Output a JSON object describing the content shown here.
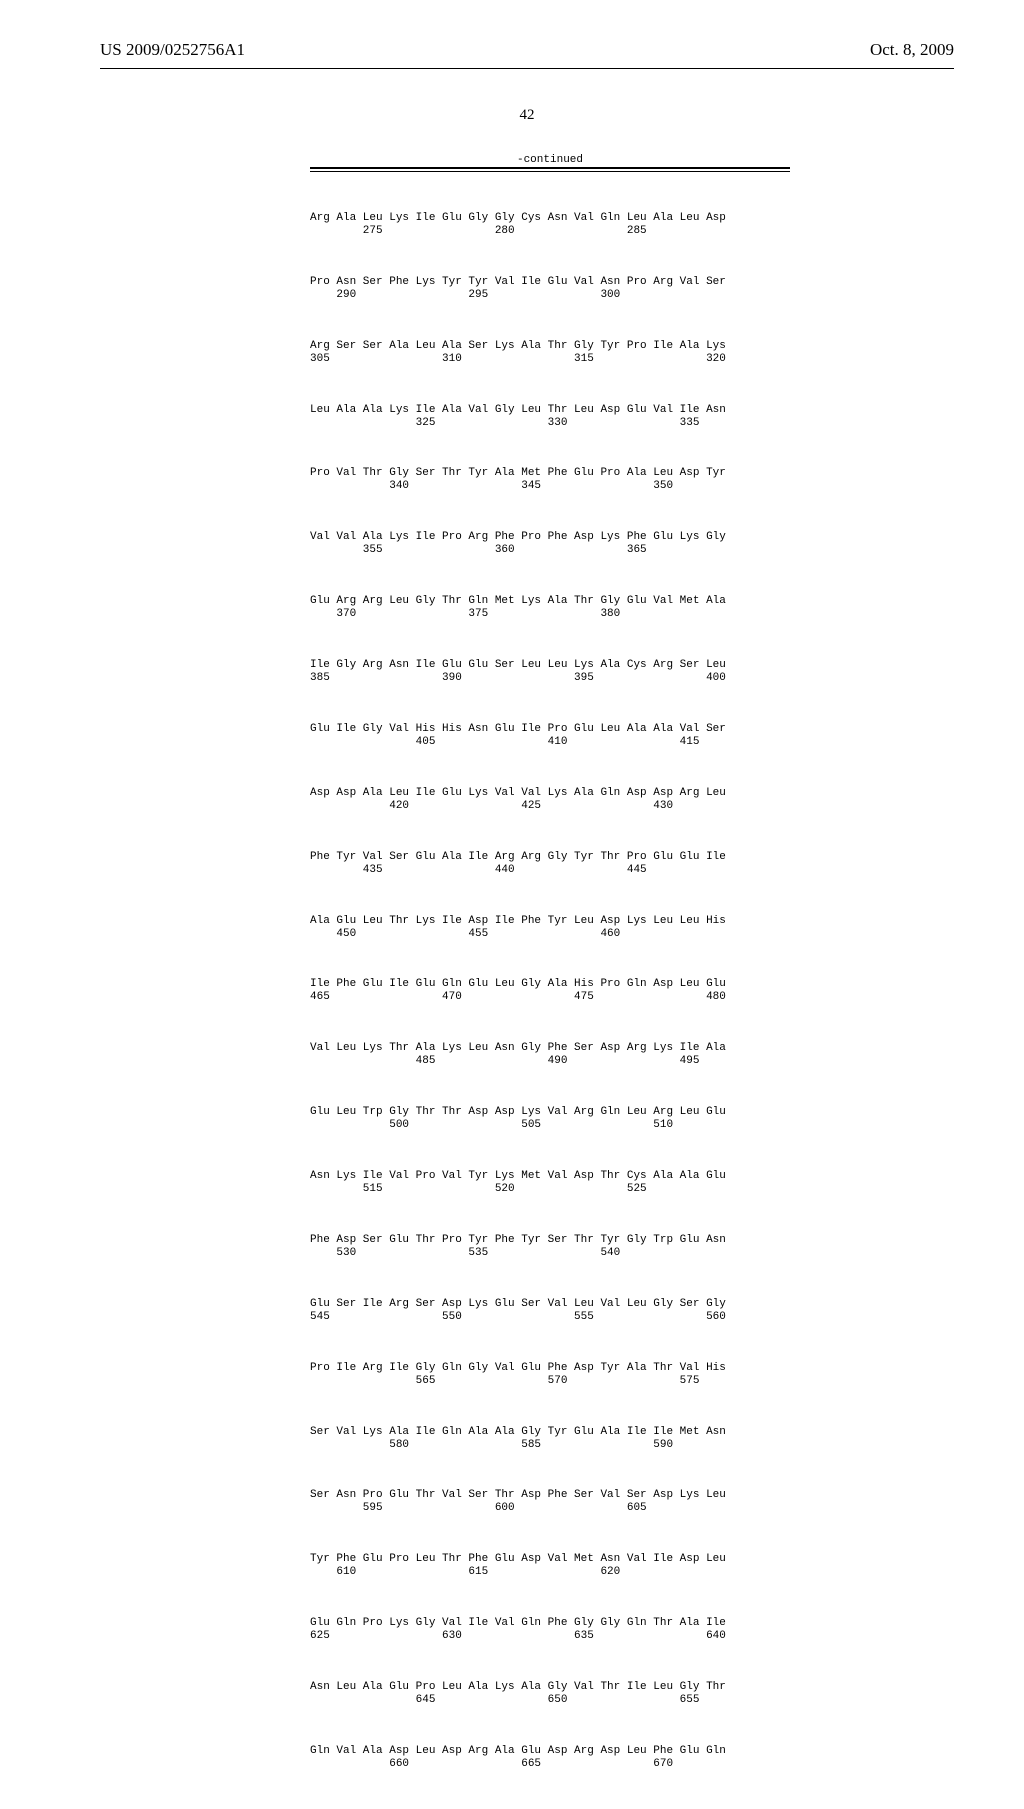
{
  "header": {
    "left": "US 2009/0252756A1",
    "right": "Oct. 8, 2009"
  },
  "page_number": "42",
  "continued_label": "-continued",
  "sequence": [
    {
      "aa": "Arg Ala Leu Lys Ile Glu Gly Gly Cys Asn Val Gln Leu Ala Leu Asp",
      "nums": "        275                 280                 285"
    },
    {
      "aa": "Pro Asn Ser Phe Lys Tyr Tyr Val Ile Glu Val Asn Pro Arg Val Ser",
      "nums": "    290                 295                 300"
    },
    {
      "aa": "Arg Ser Ser Ala Leu Ala Ser Lys Ala Thr Gly Tyr Pro Ile Ala Lys",
      "nums": "305                 310                 315                 320"
    },
    {
      "aa": "Leu Ala Ala Lys Ile Ala Val Gly Leu Thr Leu Asp Glu Val Ile Asn",
      "nums": "                325                 330                 335"
    },
    {
      "aa": "Pro Val Thr Gly Ser Thr Tyr Ala Met Phe Glu Pro Ala Leu Asp Tyr",
      "nums": "            340                 345                 350"
    },
    {
      "aa": "Val Val Ala Lys Ile Pro Arg Phe Pro Phe Asp Lys Phe Glu Lys Gly",
      "nums": "        355                 360                 365"
    },
    {
      "aa": "Glu Arg Arg Leu Gly Thr Gln Met Lys Ala Thr Gly Glu Val Met Ala",
      "nums": "    370                 375                 380"
    },
    {
      "aa": "Ile Gly Arg Asn Ile Glu Glu Ser Leu Leu Lys Ala Cys Arg Ser Leu",
      "nums": "385                 390                 395                 400"
    },
    {
      "aa": "Glu Ile Gly Val His His Asn Glu Ile Pro Glu Leu Ala Ala Val Ser",
      "nums": "                405                 410                 415"
    },
    {
      "aa": "Asp Asp Ala Leu Ile Glu Lys Val Val Lys Ala Gln Asp Asp Arg Leu",
      "nums": "            420                 425                 430"
    },
    {
      "aa": "Phe Tyr Val Ser Glu Ala Ile Arg Arg Gly Tyr Thr Pro Glu Glu Ile",
      "nums": "        435                 440                 445"
    },
    {
      "aa": "Ala Glu Leu Thr Lys Ile Asp Ile Phe Tyr Leu Asp Lys Leu Leu His",
      "nums": "    450                 455                 460"
    },
    {
      "aa": "Ile Phe Glu Ile Glu Gln Glu Leu Gly Ala His Pro Gln Asp Leu Glu",
      "nums": "465                 470                 475                 480"
    },
    {
      "aa": "Val Leu Lys Thr Ala Lys Leu Asn Gly Phe Ser Asp Arg Lys Ile Ala",
      "nums": "                485                 490                 495"
    },
    {
      "aa": "Glu Leu Trp Gly Thr Thr Asp Asp Lys Val Arg Gln Leu Arg Leu Glu",
      "nums": "            500                 505                 510"
    },
    {
      "aa": "Asn Lys Ile Val Pro Val Tyr Lys Met Val Asp Thr Cys Ala Ala Glu",
      "nums": "        515                 520                 525"
    },
    {
      "aa": "Phe Asp Ser Glu Thr Pro Tyr Phe Tyr Ser Thr Tyr Gly Trp Glu Asn",
      "nums": "    530                 535                 540"
    },
    {
      "aa": "Glu Ser Ile Arg Ser Asp Lys Glu Ser Val Leu Val Leu Gly Ser Gly",
      "nums": "545                 550                 555                 560"
    },
    {
      "aa": "Pro Ile Arg Ile Gly Gln Gly Val Glu Phe Asp Tyr Ala Thr Val His",
      "nums": "                565                 570                 575"
    },
    {
      "aa": "Ser Val Lys Ala Ile Gln Ala Ala Gly Tyr Glu Ala Ile Ile Met Asn",
      "nums": "            580                 585                 590"
    },
    {
      "aa": "Ser Asn Pro Glu Thr Val Ser Thr Asp Phe Ser Val Ser Asp Lys Leu",
      "nums": "        595                 600                 605"
    },
    {
      "aa": "Tyr Phe Glu Pro Leu Thr Phe Glu Asp Val Met Asn Val Ile Asp Leu",
      "nums": "    610                 615                 620"
    },
    {
      "aa": "Glu Gln Pro Lys Gly Val Ile Val Gln Phe Gly Gly Gln Thr Ala Ile",
      "nums": "625                 630                 635                 640"
    },
    {
      "aa": "Asn Leu Ala Glu Pro Leu Ala Lys Ala Gly Val Thr Ile Leu Gly Thr",
      "nums": "                645                 650                 655"
    },
    {
      "aa": "Gln Val Ala Asp Leu Asp Arg Ala Glu Asp Arg Asp Leu Phe Glu Gln",
      "nums": "            660                 665                 670"
    }
  ]
}
